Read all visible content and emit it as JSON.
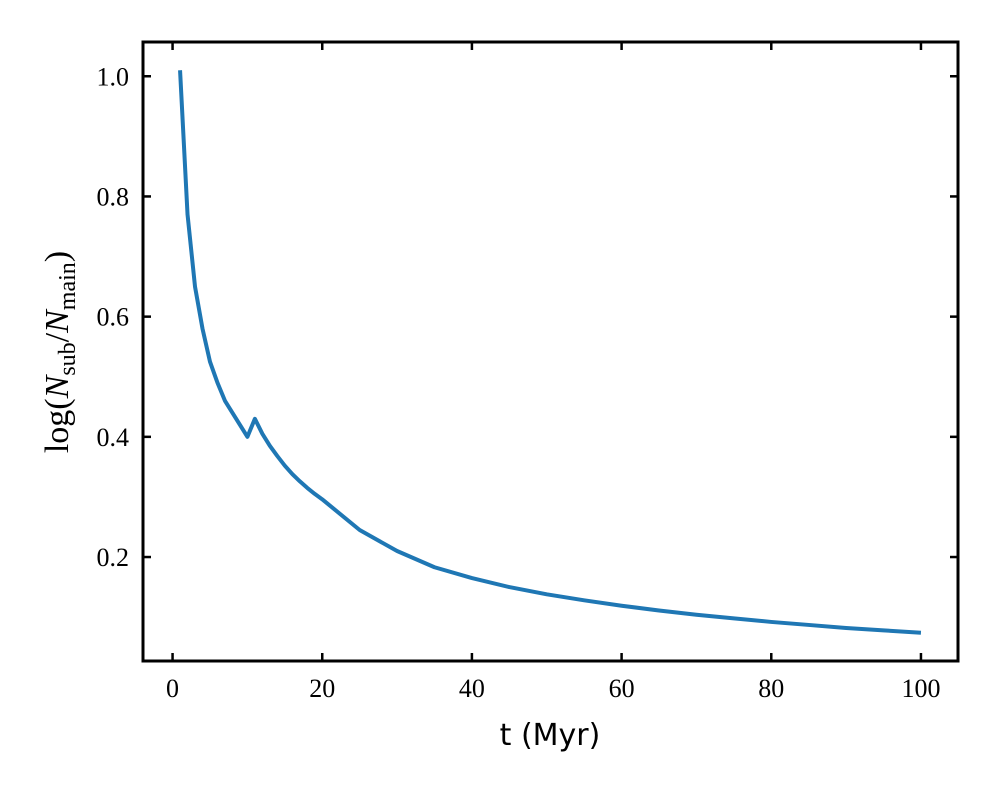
{
  "chart_data": {
    "type": "line",
    "xlabel": "t (Myr)",
    "ylabel": [
      "log(",
      "N",
      "sub",
      "/",
      "N",
      "main",
      ")"
    ],
    "x": [
      1,
      2,
      3,
      4,
      5,
      6,
      7,
      8,
      9,
      10,
      11,
      12,
      13,
      14,
      15,
      16,
      17,
      18,
      19,
      20,
      25,
      30,
      35,
      40,
      45,
      50,
      55,
      60,
      65,
      70,
      75,
      80,
      85,
      90,
      95,
      100
    ],
    "values": [
      1.01,
      0.77,
      0.65,
      0.58,
      0.525,
      0.49,
      0.46,
      0.44,
      0.42,
      0.4,
      0.43,
      0.405,
      0.385,
      0.368,
      0.352,
      0.338,
      0.326,
      0.315,
      0.305,
      0.296,
      0.245,
      0.21,
      0.183,
      0.165,
      0.15,
      0.138,
      0.128,
      0.119,
      0.111,
      0.104,
      0.098,
      0.092,
      0.087,
      0.082,
      0.078,
      0.074
    ],
    "color": "#1f77b4",
    "xlim": [
      -3.95,
      104.95
    ],
    "ylim": [
      0.027,
      1.057
    ],
    "xticks": [
      0,
      20,
      40,
      60,
      80,
      100
    ],
    "yticks": [
      0.2,
      0.4,
      0.6,
      0.8,
      {
        "value": 1,
        "label": "1.0"
      }
    ]
  }
}
